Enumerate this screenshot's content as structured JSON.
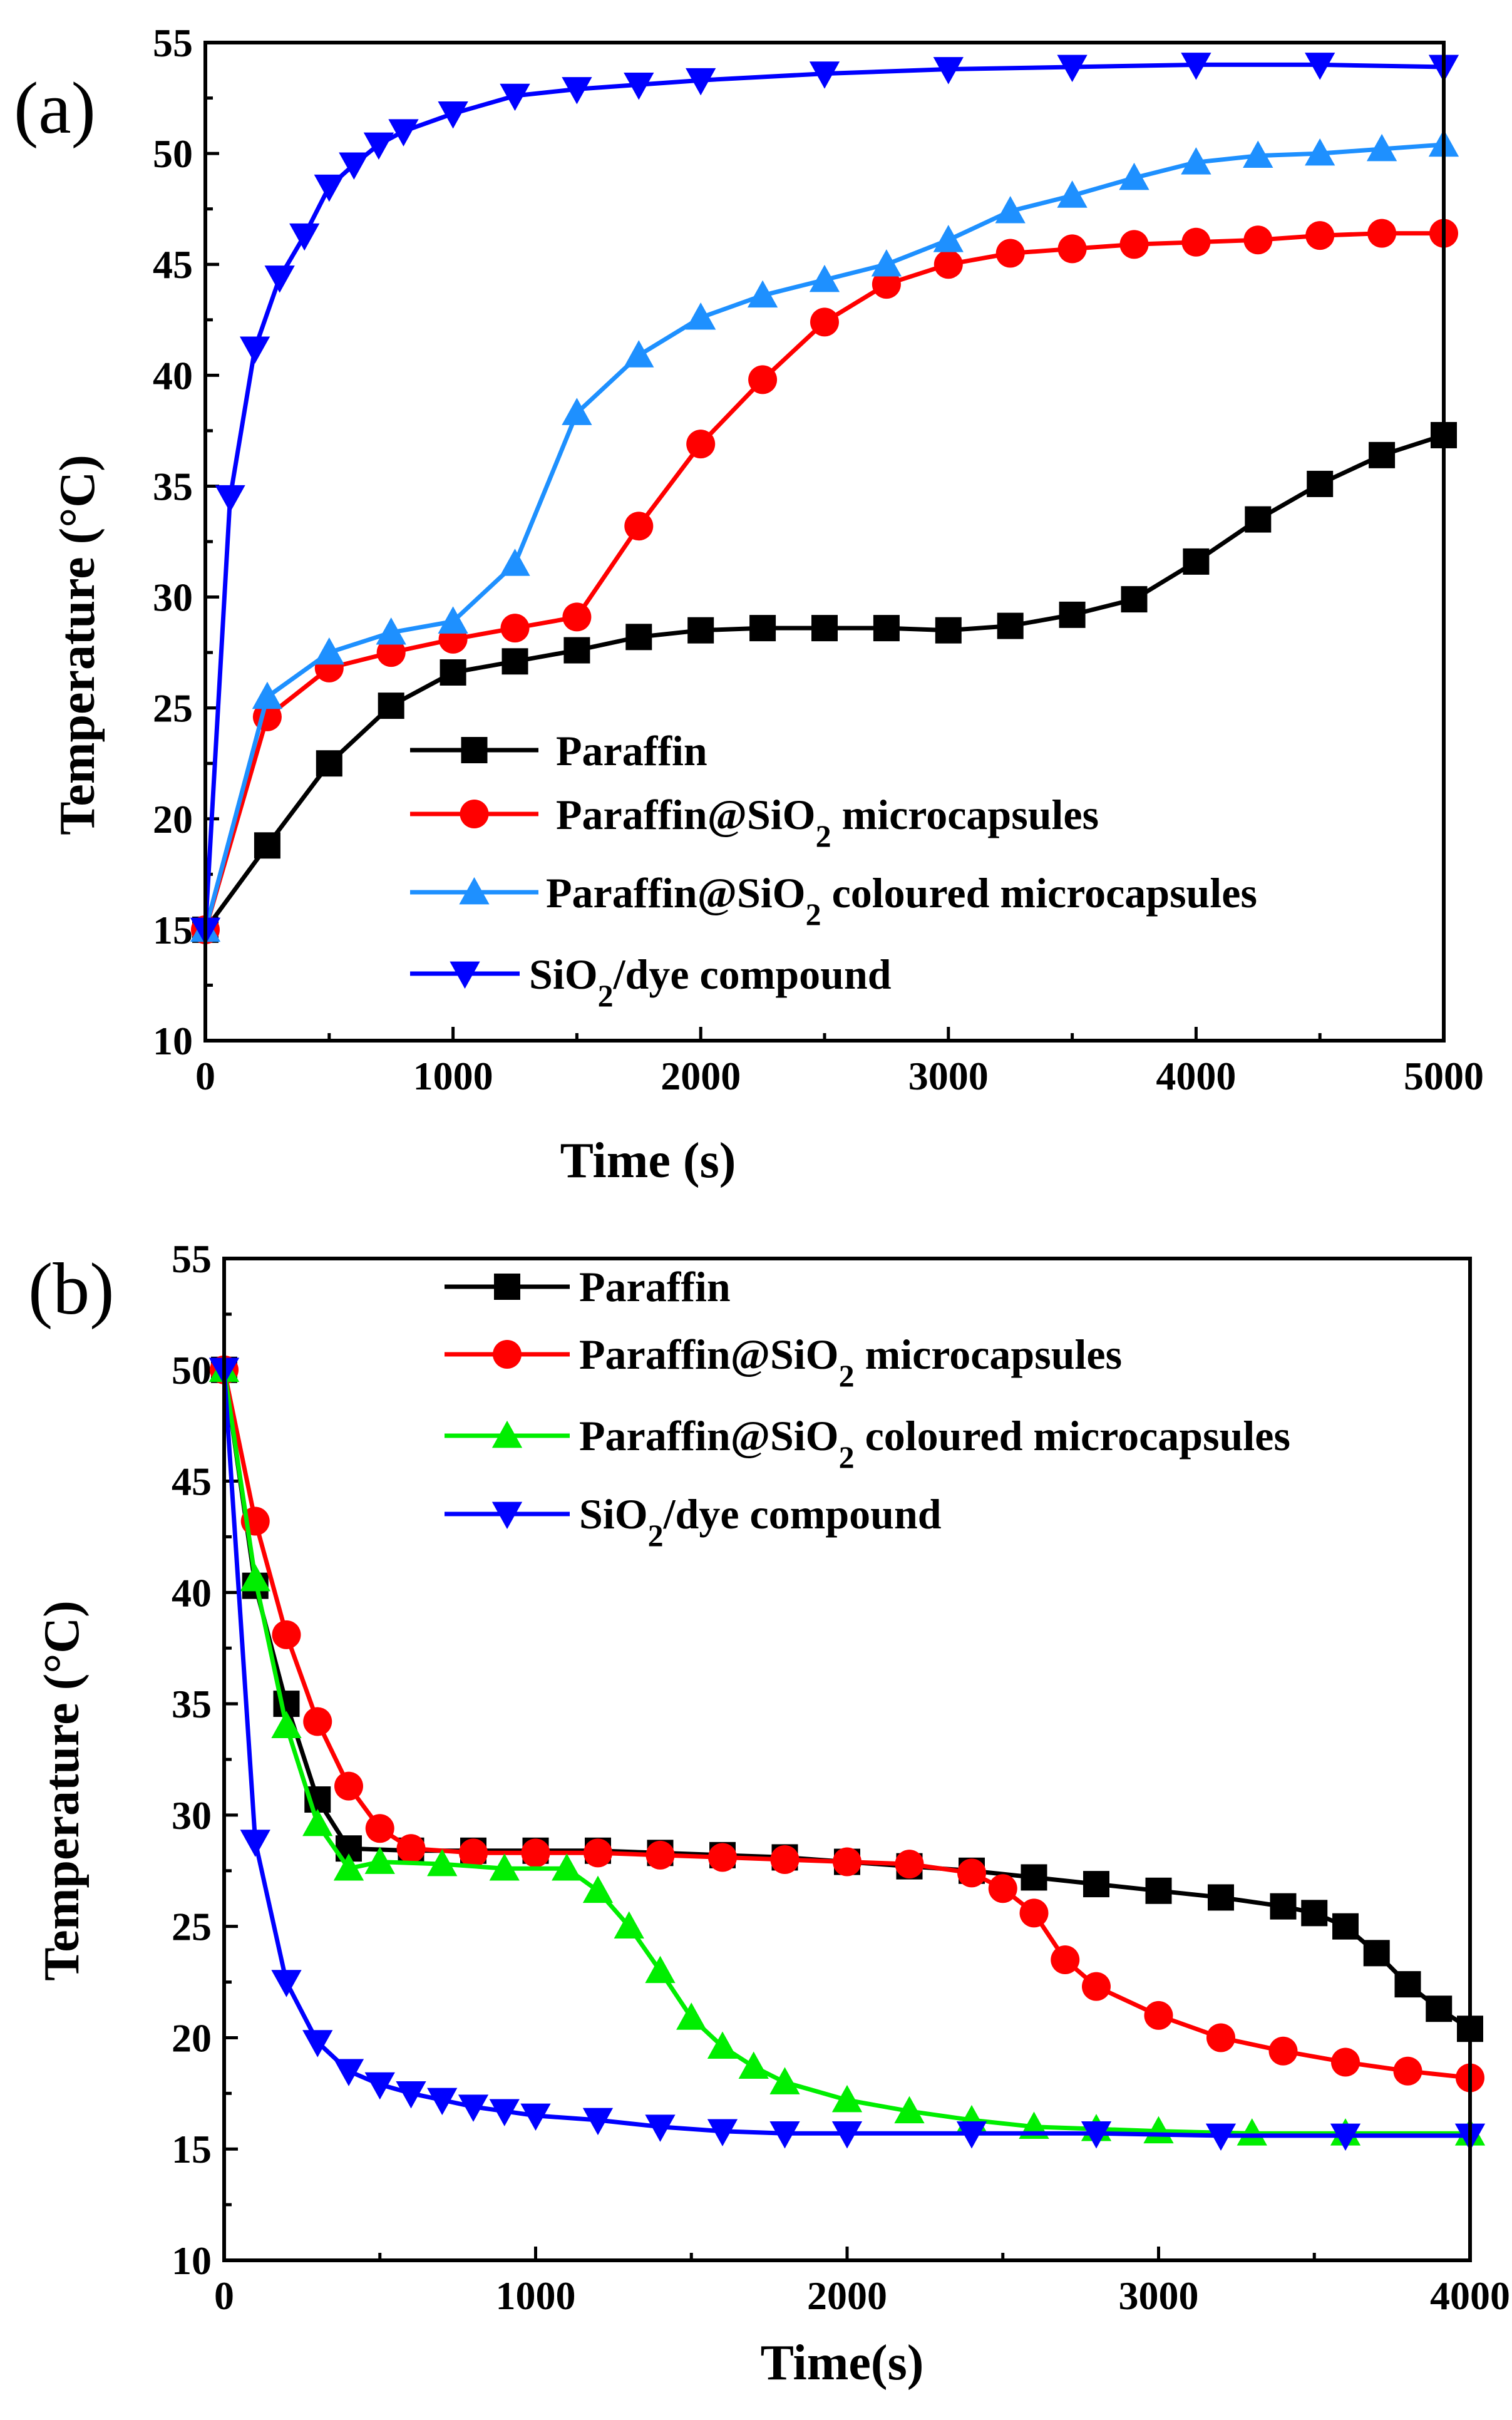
{
  "chart_data": [
    {
      "id": "a",
      "type": "line",
      "panel_label": "(a)",
      "xlabel": "Time (s)",
      "ylabel": "Temperature (°C)",
      "xlim": [
        0,
        5000
      ],
      "ylim": [
        10,
        55
      ],
      "xticks": [
        "0",
        "1000",
        "2000",
        "3000",
        "4000",
        "5000"
      ],
      "yticks": [
        "10",
        "15",
        "20",
        "25",
        "30",
        "35",
        "40",
        "45",
        "50",
        "55"
      ],
      "legend_position": "lower-center",
      "series": [
        {
          "name": "Paraffin",
          "legend_main": "Paraffin",
          "legend_sub": "",
          "legend_tail": "",
          "color": "#000000",
          "marker": "square",
          "x": [
            0,
            250,
            500,
            750,
            1000,
            1250,
            1500,
            1750,
            2000,
            2250,
            2500,
            2750,
            3000,
            3250,
            3500,
            3750,
            4000,
            4250,
            4500,
            4750,
            5000
          ],
          "y": [
            15.0,
            18.8,
            22.5,
            25.1,
            26.6,
            27.1,
            27.6,
            28.2,
            28.5,
            28.6,
            28.6,
            28.6,
            28.5,
            28.7,
            29.2,
            29.9,
            31.6,
            33.5,
            35.1,
            36.4,
            37.3
          ]
        },
        {
          "name": "Paraffin@SiO2 microcapsules",
          "legend_main": "Paraffin@SiO",
          "legend_sub": "2",
          "legend_tail": " microcapsules",
          "color": "#ff0000",
          "marker": "circle",
          "x": [
            0,
            250,
            500,
            750,
            1000,
            1250,
            1500,
            1750,
            2000,
            2250,
            2500,
            2750,
            3000,
            3250,
            3500,
            3750,
            4000,
            4250,
            4500,
            4750,
            5000
          ],
          "y": [
            15.0,
            24.6,
            26.8,
            27.5,
            28.1,
            28.6,
            29.1,
            33.2,
            36.9,
            39.8,
            42.4,
            44.1,
            45.0,
            45.5,
            45.7,
            45.9,
            46.0,
            46.1,
            46.3,
            46.4,
            46.4
          ]
        },
        {
          "name": "Paraffin@SiO2 coloured microcapsules",
          "legend_main": "Paraffin@SiO",
          "legend_sub": "2",
          "legend_tail": " coloured microcapsules",
          "color": "#1e90ff",
          "marker": "triangle-up",
          "x": [
            0,
            250,
            500,
            750,
            1000,
            1250,
            1500,
            1750,
            2000,
            2250,
            2500,
            2750,
            3000,
            3250,
            3500,
            3750,
            4000,
            4250,
            4500,
            4750,
            5000
          ],
          "y": [
            15.0,
            25.5,
            27.5,
            28.4,
            28.9,
            31.5,
            38.3,
            40.9,
            42.6,
            43.6,
            44.3,
            45.0,
            46.1,
            47.4,
            48.1,
            48.9,
            49.6,
            49.9,
            50.0,
            50.2,
            50.4
          ]
        },
        {
          "name": "SiO2/dye compound",
          "legend_main": "SiO",
          "legend_sub": "2",
          "legend_tail": "/dye compound",
          "color": "#0000ff",
          "marker": "triangle-down",
          "x": [
            0,
            100,
            200,
            300,
            400,
            500,
            600,
            700,
            800,
            1000,
            1250,
            1500,
            1750,
            2000,
            2500,
            3000,
            3500,
            4000,
            4500,
            5000
          ],
          "y": [
            15.0,
            34.5,
            41.2,
            44.4,
            46.3,
            48.5,
            49.5,
            50.4,
            51.0,
            51.8,
            52.6,
            52.9,
            53.1,
            53.3,
            53.6,
            53.8,
            53.9,
            54.0,
            54.0,
            53.9
          ]
        }
      ]
    },
    {
      "id": "b",
      "type": "line",
      "panel_label": "(b)",
      "xlabel": "Time(s)",
      "ylabel": "Temperature (°C)",
      "xlim": [
        0,
        4000
      ],
      "ylim": [
        10,
        55
      ],
      "xticks": [
        "0",
        "1000",
        "2000",
        "3000",
        "4000"
      ],
      "yticks": [
        "10",
        "15",
        "20",
        "25",
        "30",
        "35",
        "40",
        "45",
        "50",
        "55"
      ],
      "legend_position": "top-center",
      "series": [
        {
          "name": "Paraffin",
          "legend_main": "Paraffin",
          "legend_sub": "",
          "legend_tail": "",
          "color": "#000000",
          "marker": "square",
          "x": [
            0,
            100,
            200,
            300,
            400,
            600,
            800,
            1000,
            1200,
            1400,
            1600,
            1800,
            2000,
            2200,
            2400,
            2600,
            2800,
            3000,
            3200,
            3400,
            3500,
            3600,
            3700,
            3800,
            3900,
            4000
          ],
          "y": [
            50.0,
            40.3,
            35.0,
            30.7,
            28.5,
            28.4,
            28.4,
            28.4,
            28.4,
            28.3,
            28.2,
            28.1,
            27.9,
            27.7,
            27.5,
            27.2,
            26.9,
            26.6,
            26.3,
            25.9,
            25.6,
            25.0,
            23.8,
            22.4,
            21.3,
            20.4
          ]
        },
        {
          "name": "Paraffin@SiO2 microcapsules",
          "legend_main": "Paraffin@SiO",
          "legend_sub": "2",
          "legend_tail": " microcapsules",
          "color": "#ff0000",
          "marker": "circle",
          "x": [
            0,
            100,
            200,
            300,
            400,
            500,
            600,
            800,
            1000,
            1200,
            1400,
            1600,
            1800,
            2000,
            2200,
            2400,
            2500,
            2600,
            2700,
            2800,
            3000,
            3200,
            3400,
            3600,
            3800,
            4000
          ],
          "y": [
            50.0,
            43.2,
            38.1,
            34.2,
            31.3,
            29.4,
            28.5,
            28.3,
            28.3,
            28.3,
            28.2,
            28.1,
            28.0,
            27.9,
            27.8,
            27.4,
            26.7,
            25.6,
            23.5,
            22.3,
            21.0,
            20.0,
            19.4,
            18.9,
            18.5,
            18.2
          ]
        },
        {
          "name": "Paraffin@SiO2 coloured microcapsules",
          "legend_main": "Paraffin@SiO",
          "legend_sub": "2",
          "legend_tail": " coloured microcapsules",
          "color": "#00ee00",
          "marker": "triangle-up",
          "x": [
            0,
            100,
            200,
            300,
            400,
            500,
            700,
            900,
            1100,
            1200,
            1300,
            1400,
            1500,
            1600,
            1700,
            1800,
            2000,
            2200,
            2400,
            2600,
            2800,
            3000,
            3300,
            3600,
            4000
          ],
          "y": [
            50.0,
            40.6,
            34.0,
            29.6,
            27.6,
            27.9,
            27.8,
            27.6,
            27.6,
            26.6,
            25.0,
            23.0,
            20.9,
            19.6,
            18.7,
            18.0,
            17.2,
            16.7,
            16.3,
            16.0,
            15.9,
            15.8,
            15.7,
            15.7,
            15.7
          ]
        },
        {
          "name": "SiO2/dye compound",
          "legend_main": "SiO",
          "legend_sub": "2",
          "legend_tail": "/dye compound",
          "color": "#0000ff",
          "marker": "triangle-down",
          "x": [
            0,
            100,
            200,
            300,
            400,
            500,
            600,
            700,
            800,
            900,
            1000,
            1200,
            1400,
            1600,
            1800,
            2000,
            2400,
            2800,
            3200,
            3600,
            4000
          ],
          "y": [
            50.0,
            28.8,
            22.5,
            19.8,
            18.5,
            17.9,
            17.5,
            17.2,
            16.9,
            16.7,
            16.5,
            16.3,
            16.0,
            15.8,
            15.7,
            15.7,
            15.7,
            15.7,
            15.6,
            15.6,
            15.6
          ]
        }
      ]
    }
  ]
}
